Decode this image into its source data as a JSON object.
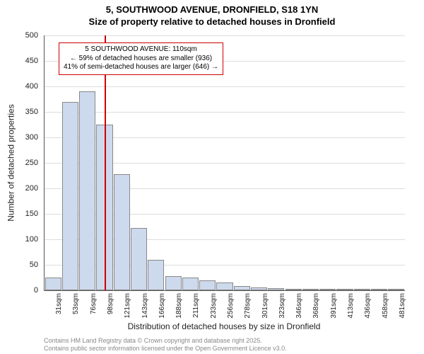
{
  "title_main": "5, SOUTHWOOD AVENUE, DRONFIELD, S18 1YN",
  "title_sub": "Size of property relative to detached houses in Dronfield",
  "ylabel": "Number of detached properties",
  "xlabel": "Distribution of detached houses by size in Dronfield",
  "chart": {
    "type": "histogram",
    "ylim": [
      0,
      500
    ],
    "ytick_step": 50,
    "bar_fill": "#cdd9ed",
    "bar_stroke": "#888888",
    "grid_color": "#dddddd",
    "background_color": "#ffffff",
    "reference_line": {
      "x_index": 3.5,
      "color": "#cc0000",
      "width": 2
    },
    "categories": [
      "31sqm",
      "53sqm",
      "76sqm",
      "98sqm",
      "121sqm",
      "143sqm",
      "166sqm",
      "188sqm",
      "211sqm",
      "233sqm",
      "256sqm",
      "278sqm",
      "301sqm",
      "323sqm",
      "346sqm",
      "368sqm",
      "391sqm",
      "413sqm",
      "436sqm",
      "458sqm",
      "481sqm"
    ],
    "values": [
      25,
      370,
      390,
      325,
      228,
      122,
      60,
      28,
      25,
      20,
      15,
      8,
      6,
      4,
      3,
      3,
      2,
      2,
      1,
      1,
      1
    ]
  },
  "annotation": {
    "lines": [
      "5 SOUTHWOOD AVENUE: 110sqm",
      "← 59% of detached houses are smaller (936)",
      "41% of semi-detached houses are larger (646) →"
    ],
    "border_color": "#cc0000"
  },
  "footer": {
    "line1": "Contains HM Land Registry data © Crown copyright and database right 2025.",
    "line2": "Contains public sector information licensed under the Open Government Licence v3.0."
  }
}
